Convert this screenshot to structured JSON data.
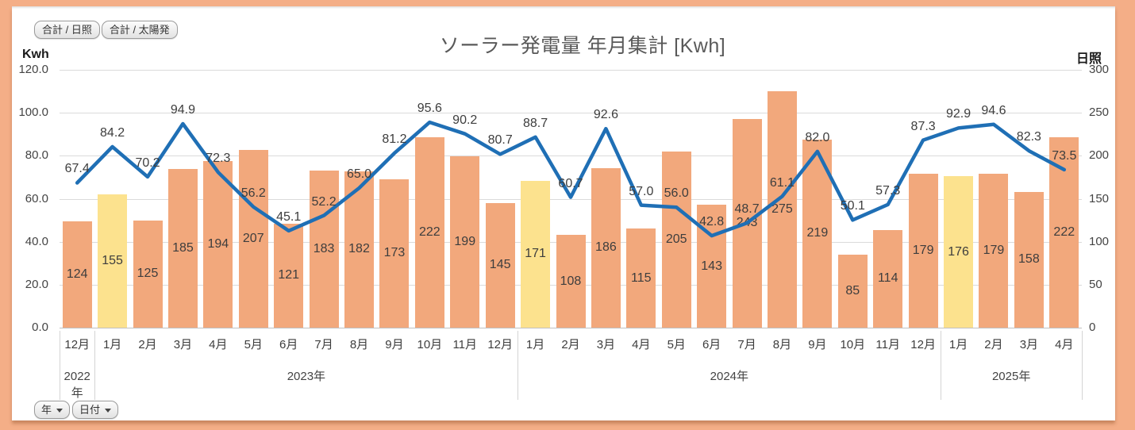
{
  "toolbar": {
    "button_sunshine": "合計 / 日照",
    "button_solar": "合計 / 太陽発"
  },
  "filters": {
    "year": "年",
    "date": "日付"
  },
  "chart_data": {
    "type": "bar+line combo",
    "title": "ソーラー発電量 年月集計 [Kwh]",
    "categories": [
      "12月",
      "1月",
      "2月",
      "3月",
      "4月",
      "5月",
      "6月",
      "7月",
      "8月",
      "9月",
      "10月",
      "11月",
      "12月",
      "1月",
      "2月",
      "3月",
      "4月",
      "5月",
      "6月",
      "7月",
      "8月",
      "9月",
      "10月",
      "11月",
      "12月",
      "1月",
      "2月",
      "3月",
      "4月"
    ],
    "year_groups": [
      {
        "label": "2022年",
        "count": 1
      },
      {
        "label": "2023年",
        "count": 12
      },
      {
        "label": "2024年",
        "count": 12
      },
      {
        "label": "2025年",
        "count": 4
      }
    ],
    "series": [
      {
        "name": "合計 / 日照",
        "type": "bar",
        "axis": "right",
        "values": [
          124,
          155,
          125,
          185,
          194,
          207,
          121,
          183,
          182,
          173,
          222,
          199,
          145,
          171,
          108,
          186,
          115,
          205,
          143,
          243,
          275,
          219,
          85,
          114,
          179,
          176,
          179,
          158,
          222
        ],
        "highlight_indices": [
          1,
          13,
          25
        ]
      },
      {
        "name": "合計 / 太陽発",
        "type": "line",
        "axis": "left",
        "values": [
          67.4,
          84.2,
          70.2,
          94.9,
          72.3,
          56.2,
          45.1,
          52.2,
          65.0,
          81.2,
          95.6,
          90.2,
          80.7,
          88.7,
          60.7,
          92.6,
          57.0,
          56.0,
          42.8,
          48.7,
          61.1,
          82.0,
          50.1,
          57.3,
          87.3,
          92.9,
          94.6,
          82.3,
          73.5
        ]
      }
    ],
    "left_axis": {
      "label": "Kwh",
      "min": 0,
      "max": 120,
      "ticks": [
        120,
        100,
        80,
        60,
        40,
        20,
        0
      ],
      "tick_decimals": 1
    },
    "right_axis": {
      "label": "日照",
      "min": 0,
      "max": 300,
      "ticks": [
        300,
        250,
        200,
        150,
        100,
        50,
        0
      ],
      "tick_decimals": 0
    },
    "grid": true,
    "legend_position": "none",
    "colors": {
      "bar": "#F2A87C",
      "bar_highlight": "#FCE28E",
      "line": "#1F6FB5",
      "grid": "#DBDBDB",
      "frame": "#F4AE87",
      "label_text": "#3d3d3d",
      "title_text": "#595959"
    }
  }
}
